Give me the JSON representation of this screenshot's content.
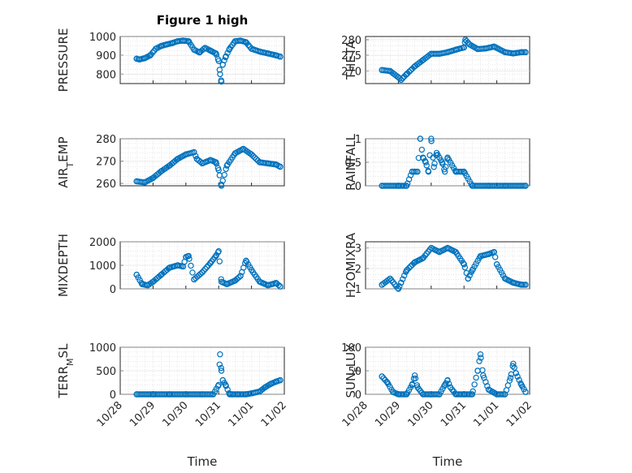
{
  "chart_data": [
    {
      "type": "scatter",
      "title": "Figure 1 high",
      "ylabel": "PRESSURE",
      "ylim": [
        750,
        1000
      ],
      "yticks": [
        "800",
        "900",
        "1000"
      ],
      "xticks": [],
      "x": [
        "10/28 12:00",
        "10/28 14:00",
        "10/28 18:00",
        "10/28 22:00",
        "10/29 02:00",
        "10/29 06:00",
        "10/29 10:00",
        "10/29 14:00",
        "10/29 18:00",
        "10/29 22:00",
        "10/30 02:00",
        "10/30 06:00",
        "10/30 10:00",
        "10/30 14:00",
        "10/30 18:00",
        "10/30 22:00",
        "10/31 00:00",
        "10/31 01:00",
        "10/31 02:00",
        "10/31 03:00",
        "10/31 05:00",
        "10/31 08:00",
        "10/31 12:00",
        "10/31 16:00",
        "10/31 20:00",
        "11/01 00:00",
        "11/01 06:00",
        "11/01 12:00",
        "11/01 18:00",
        "11/01 21:00"
      ],
      "series": [
        {
          "values": [
            882,
            878,
            885,
            900,
            935,
            950,
            958,
            965,
            975,
            978,
            975,
            930,
            915,
            940,
            925,
            910,
            870,
            800,
            760,
            850,
            890,
            935,
            975,
            978,
            970,
            935,
            920,
            910,
            900,
            893
          ]
        }
      ]
    },
    {
      "type": "scatter",
      "ylabel": "THETA",
      "ylim": [
        266,
        281
      ],
      "yticks": [
        "270",
        "275",
        "280"
      ],
      "xticks": [],
      "x": [
        "10/28 12:00",
        "10/28 18:00",
        "10/29 00:00",
        "10/29 02:00",
        "10/29 06:00",
        "10/29 12:00",
        "10/29 18:00",
        "10/30 00:00",
        "10/30 06:00",
        "10/30 12:00",
        "10/30 18:00",
        "10/31 00:00",
        "10/31 01:00",
        "10/31 04:00",
        "10/31 10:00",
        "10/31 16:00",
        "10/31 22:00",
        "11/01 06:00",
        "11/01 12:00",
        "11/01 18:00",
        "11/01 21:00"
      ],
      "series": [
        {
          "values": [
            270.3,
            270,
            268,
            267.2,
            269,
            271.5,
            273.5,
            275.5,
            275.5,
            276,
            276.8,
            277.5,
            280,
            278.5,
            277,
            277.2,
            277.8,
            276,
            275.6,
            276,
            276
          ]
        }
      ]
    },
    {
      "type": "scatter",
      "ylabel": "AIR_TEMP",
      "ylim": [
        259,
        280
      ],
      "yticks": [
        "260",
        "270",
        "280"
      ],
      "xticks": [],
      "x": [
        "10/28 12:00",
        "10/28 18:00",
        "10/29 00:00",
        "10/29 06:00",
        "10/29 12:00",
        "10/29 18:00",
        "10/30 00:00",
        "10/30 06:00",
        "10/30 08:00",
        "10/30 12:00",
        "10/30 18:00",
        "10/30 22:00",
        "10/31 00:00",
        "10/31 02:00",
        "10/31 06:00",
        "10/31 12:00",
        "10/31 18:00",
        "11/01 00:00",
        "11/01 06:00",
        "11/01 12:00",
        "11/01 18:00",
        "11/01 21:00"
      ],
      "series": [
        {
          "values": [
            261,
            260.5,
            262.5,
            265.5,
            268,
            271,
            273,
            274,
            271,
            269,
            270.5,
            269.5,
            266,
            259,
            268,
            273.5,
            275.5,
            273,
            269.5,
            269,
            268.5,
            267.5
          ]
        }
      ]
    },
    {
      "type": "scatter",
      "ylabel": "RAINFALL",
      "ylim": [
        0,
        1
      ],
      "yticks": [
        "0",
        "0.5",
        "1"
      ],
      "xticks": [],
      "x": [
        "10/28 12:00",
        "10/29 00:00",
        "10/29 06:00",
        "10/29 10:00",
        "10/29 14:00",
        "10/29 16:00",
        "10/29 18:00",
        "10/29 20:00",
        "10/29 22:00",
        "10/30 00:00",
        "10/30 02:00",
        "10/30 04:00",
        "10/30 08:00",
        "10/30 10:00",
        "10/30 12:00",
        "10/30 18:00",
        "10/31 00:00",
        "10/31 06:00",
        "10/31 18:00",
        "11/01 06:00",
        "11/01 21:00"
      ],
      "series": [
        {
          "values": [
            0,
            0,
            0,
            0.3,
            0.3,
            1,
            0.6,
            0.5,
            0.3,
            1,
            0.4,
            0.7,
            0.5,
            0.3,
            0.6,
            0.3,
            0.3,
            0,
            0,
            0,
            0
          ]
        }
      ]
    },
    {
      "type": "scatter",
      "ylabel": "MIXDEPTH",
      "ylim": [
        0,
        2000
      ],
      "yticks": [
        "0",
        "1000",
        "2000"
      ],
      "xticks": [],
      "x": [
        "10/28 12:00",
        "10/28 16:00",
        "10/28 20:00",
        "10/29 00:00",
        "10/29 06:00",
        "10/29 12:00",
        "10/29 18:00",
        "10/29 22:00",
        "10/30 00:00",
        "10/30 02:00",
        "10/30 06:00",
        "10/30 12:00",
        "10/30 18:00",
        "10/30 22:00",
        "10/31 00:00",
        "10/31 02:00",
        "10/31 06:00",
        "10/31 12:00",
        "10/31 16:00",
        "10/31 20:00",
        "11/01 00:00",
        "11/01 06:00",
        "11/01 12:00",
        "11/01 18:00",
        "11/01 21:00"
      ],
      "series": [
        {
          "values": [
            600,
            200,
            150,
            300,
            600,
            900,
            1000,
            950,
            1350,
            1400,
            400,
            700,
            1100,
            1400,
            1600,
            300,
            200,
            350,
            550,
            1200,
            800,
            300,
            150,
            250,
            100
          ]
        }
      ]
    },
    {
      "type": "scatter",
      "ylabel": "H2OMIXRA",
      "ylim": [
        1,
        3.3
      ],
      "yticks": [
        "1",
        "2",
        "3"
      ],
      "xticks": [],
      "x": [
        "10/28 12:00",
        "10/28 18:00",
        "10/29 00:00",
        "10/29 02:00",
        "10/29 06:00",
        "10/29 12:00",
        "10/29 18:00",
        "10/30 00:00",
        "10/30 06:00",
        "10/30 12:00",
        "10/30 18:00",
        "10/31 00:00",
        "10/31 03:00",
        "10/31 06:00",
        "10/31 12:00",
        "10/31 18:00",
        "10/31 22:00",
        "11/01 00:00",
        "11/01 06:00",
        "11/01 12:00",
        "11/01 18:00",
        "11/01 21:00"
      ],
      "series": [
        {
          "values": [
            1.2,
            1.5,
            1.0,
            1.3,
            1.9,
            2.3,
            2.5,
            3.0,
            2.8,
            3.0,
            2.8,
            2.2,
            1.5,
            1.9,
            2.6,
            2.7,
            2.8,
            2.2,
            1.5,
            1.3,
            1.2,
            1.2
          ]
        }
      ]
    },
    {
      "type": "scatter",
      "ylabel": "TERR_MSL",
      "ylim": [
        0,
        1000
      ],
      "yticks": [
        "0",
        "500",
        "1000"
      ],
      "xticks": [
        "10/28",
        "10/29",
        "10/30",
        "10/31",
        "11/01",
        "11/02"
      ],
      "xlabel": "Time",
      "x": [
        "10/28 12:00",
        "10/29 00:00",
        "10/29 12:00",
        "10/30 00:00",
        "10/30 12:00",
        "10/30 20:00",
        "10/31 00:00",
        "10/31 01:00",
        "10/31 02:00",
        "10/31 03:00",
        "10/31 05:00",
        "10/31 08:00",
        "10/31 10:00",
        "10/31 14:00",
        "10/31 20:00",
        "11/01 00:00",
        "11/01 06:00",
        "11/01 10:00",
        "11/01 14:00",
        "11/01 18:00",
        "11/01 21:00"
      ],
      "series": [
        {
          "values": [
            0,
            0,
            0,
            0,
            0,
            0,
            200,
            850,
            500,
            300,
            200,
            0,
            0,
            0,
            0,
            20,
            60,
            150,
            220,
            270,
            300
          ]
        }
      ]
    },
    {
      "type": "scatter",
      "ylabel": "SUN_FLUX",
      "ylim": [
        0,
        100
      ],
      "yticks": [
        "0",
        "50",
        "100"
      ],
      "xticks": [
        "10/28",
        "10/29",
        "10/30",
        "10/31",
        "11/01",
        "11/02"
      ],
      "xlabel": "Time",
      "x": [
        "10/28 12:00",
        "10/28 16:00",
        "10/28 20:00",
        "10/29 00:00",
        "10/29 06:00",
        "10/29 10:00",
        "10/29 12:00",
        "10/29 14:00",
        "10/29 18:00",
        "10/30 00:00",
        "10/30 06:00",
        "10/30 10:00",
        "10/30 12:00",
        "10/30 14:00",
        "10/30 18:00",
        "10/31 00:00",
        "10/31 06:00",
        "10/31 10:00",
        "10/31 12:00",
        "10/31 14:00",
        "10/31 18:00",
        "11/01 00:00",
        "11/01 06:00",
        "11/01 10:00",
        "11/01 12:00",
        "11/01 14:00",
        "11/01 18:00",
        "11/01 21:00"
      ],
      "series": [
        {
          "values": [
            38,
            25,
            5,
            0,
            0,
            20,
            40,
            15,
            0,
            0,
            0,
            20,
            30,
            15,
            0,
            0,
            0,
            50,
            85,
            40,
            10,
            0,
            0,
            35,
            65,
            45,
            20,
            5
          ]
        }
      ]
    }
  ],
  "style": {
    "marker_color": "#0072bd",
    "axis_color": "#262626",
    "grid_color": "#dfdfdf"
  }
}
